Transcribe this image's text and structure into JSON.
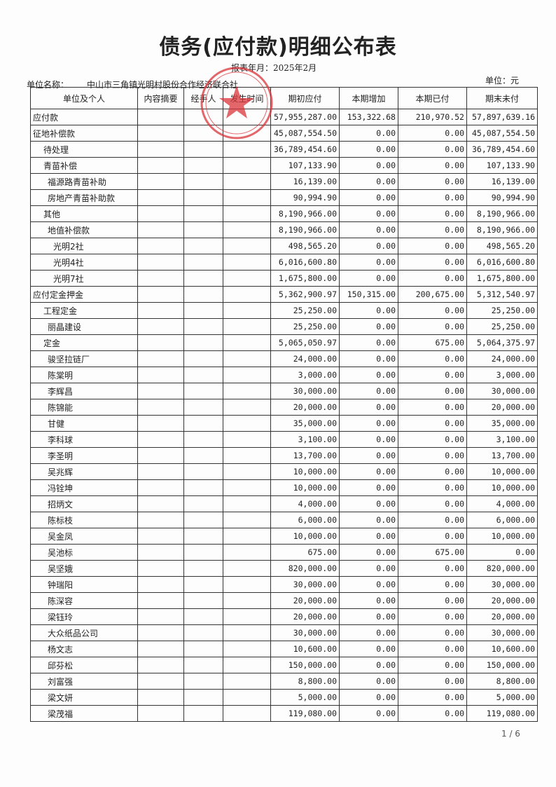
{
  "title": "债务(应付款)明细公布表",
  "period": "报表年月：2025年2月",
  "org_label": "单位名称：",
  "org_name": "中山市三角镇光明村股份合作经济联合社",
  "unit": "单位：元",
  "stamp_color": "#d9343a",
  "headers": [
    "单位及个人",
    "内容摘要",
    "经手人",
    "发生时间",
    "期初应付",
    "本期增加",
    "本期已付",
    "期末未付"
  ],
  "rows": [
    {
      "name": "应付款",
      "level": 0,
      "v": [
        "57,955,287.00",
        "153,322.68",
        "210,970.52",
        "57,897,639.16"
      ]
    },
    {
      "name": "征地补偿款",
      "level": 0,
      "v": [
        "45,087,554.50",
        "0.00",
        "0.00",
        "45,087,554.50"
      ]
    },
    {
      "name": "待处理",
      "level": 1,
      "v": [
        "36,789,454.60",
        "0.00",
        "0.00",
        "36,789,454.60"
      ]
    },
    {
      "name": "青苗补偿",
      "level": 1,
      "v": [
        "107,133.90",
        "0.00",
        "0.00",
        "107,133.90"
      ]
    },
    {
      "name": "福源路青苗补助",
      "level": 2,
      "v": [
        "16,139.00",
        "0.00",
        "0.00",
        "16,139.00"
      ]
    },
    {
      "name": "房地产青苗补助款",
      "level": 2,
      "v": [
        "90,994.90",
        "0.00",
        "0.00",
        "90,994.90"
      ]
    },
    {
      "name": "其他",
      "level": 1,
      "v": [
        "8,190,966.00",
        "0.00",
        "0.00",
        "8,190,966.00"
      ]
    },
    {
      "name": "地值补偿款",
      "level": 2,
      "v": [
        "8,190,966.00",
        "0.00",
        "0.00",
        "8,190,966.00"
      ]
    },
    {
      "name": "光明2社",
      "level": 3,
      "v": [
        "498,565.20",
        "0.00",
        "0.00",
        "498,565.20"
      ]
    },
    {
      "name": "光明4社",
      "level": 3,
      "v": [
        "6,016,600.80",
        "0.00",
        "0.00",
        "6,016,600.80"
      ]
    },
    {
      "name": "光明7社",
      "level": 3,
      "v": [
        "1,675,800.00",
        "0.00",
        "0.00",
        "1,675,800.00"
      ]
    },
    {
      "name": "应付定金押金",
      "level": 0,
      "v": [
        "5,362,900.97",
        "150,315.00",
        "200,675.00",
        "5,312,540.97"
      ]
    },
    {
      "name": "工程定金",
      "level": 1,
      "v": [
        "25,250.00",
        "0.00",
        "0.00",
        "25,250.00"
      ]
    },
    {
      "name": "丽晶建设",
      "level": 2,
      "v": [
        "25,250.00",
        "0.00",
        "0.00",
        "25,250.00"
      ]
    },
    {
      "name": "定金",
      "level": 1,
      "v": [
        "5,065,050.97",
        "0.00",
        "675.00",
        "5,064,375.97"
      ]
    },
    {
      "name": "骏坚拉链厂",
      "level": 2,
      "v": [
        "24,000.00",
        "0.00",
        "0.00",
        "24,000.00"
      ]
    },
    {
      "name": "陈棠明",
      "level": 2,
      "v": [
        "3,000.00",
        "0.00",
        "0.00",
        "3,000.00"
      ]
    },
    {
      "name": "李辉昌",
      "level": 2,
      "v": [
        "30,000.00",
        "0.00",
        "0.00",
        "30,000.00"
      ]
    },
    {
      "name": "陈锦能",
      "level": 2,
      "v": [
        "20,000.00",
        "0.00",
        "0.00",
        "20,000.00"
      ]
    },
    {
      "name": "甘健",
      "level": 2,
      "v": [
        "35,000.00",
        "0.00",
        "0.00",
        "35,000.00"
      ]
    },
    {
      "name": "李科球",
      "level": 2,
      "v": [
        "3,100.00",
        "0.00",
        "0.00",
        "3,100.00"
      ]
    },
    {
      "name": "李圣明",
      "level": 2,
      "v": [
        "13,700.00",
        "0.00",
        "0.00",
        "13,700.00"
      ]
    },
    {
      "name": "吴兆辉",
      "level": 2,
      "v": [
        "10,000.00",
        "0.00",
        "0.00",
        "10,000.00"
      ]
    },
    {
      "name": "冯铨坤",
      "level": 2,
      "v": [
        "10,000.00",
        "0.00",
        "0.00",
        "10,000.00"
      ]
    },
    {
      "name": "招炳文",
      "level": 2,
      "v": [
        "4,000.00",
        "0.00",
        "0.00",
        "4,000.00"
      ]
    },
    {
      "name": "陈标枝",
      "level": 2,
      "v": [
        "6,000.00",
        "0.00",
        "0.00",
        "6,000.00"
      ]
    },
    {
      "name": "吴金凤",
      "level": 2,
      "v": [
        "10,000.00",
        "0.00",
        "0.00",
        "10,000.00"
      ]
    },
    {
      "name": "吴池标",
      "level": 2,
      "v": [
        "675.00",
        "0.00",
        "675.00",
        "0.00"
      ]
    },
    {
      "name": "吴坚娥",
      "level": 2,
      "v": [
        "820,000.00",
        "0.00",
        "0.00",
        "820,000.00"
      ]
    },
    {
      "name": "钟瑞阳",
      "level": 2,
      "v": [
        "30,000.00",
        "0.00",
        "0.00",
        "30,000.00"
      ]
    },
    {
      "name": "陈深容",
      "level": 2,
      "v": [
        "20,000.00",
        "0.00",
        "0.00",
        "20,000.00"
      ]
    },
    {
      "name": "梁钰玲",
      "level": 2,
      "v": [
        "20,000.00",
        "0.00",
        "0.00",
        "20,000.00"
      ]
    },
    {
      "name": "大众纸品公司",
      "level": 2,
      "v": [
        "30,000.00",
        "0.00",
        "0.00",
        "30,000.00"
      ]
    },
    {
      "name": "杨文志",
      "level": 2,
      "v": [
        "10,600.00",
        "0.00",
        "0.00",
        "10,600.00"
      ]
    },
    {
      "name": "邱芬松",
      "level": 2,
      "v": [
        "150,000.00",
        "0.00",
        "0.00",
        "150,000.00"
      ]
    },
    {
      "name": "刘富强",
      "level": 2,
      "v": [
        "8,800.00",
        "0.00",
        "0.00",
        "8,800.00"
      ]
    },
    {
      "name": "梁文妍",
      "level": 2,
      "v": [
        "5,000.00",
        "0.00",
        "0.00",
        "5,000.00"
      ]
    },
    {
      "name": "梁茂福",
      "level": 2,
      "v": [
        "119,080.00",
        "0.00",
        "0.00",
        "119,080.00"
      ]
    }
  ],
  "page": "1 / 6"
}
